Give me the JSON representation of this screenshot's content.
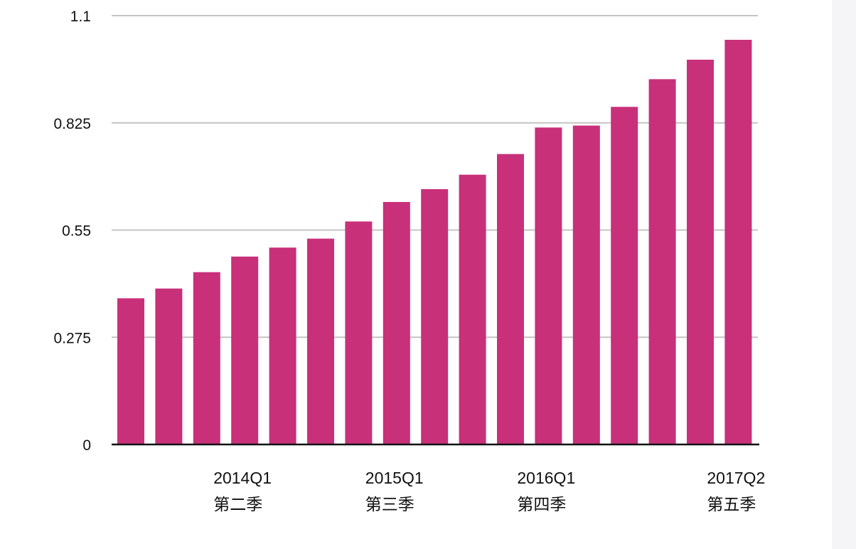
{
  "chart_data": {
    "type": "bar",
    "title": "",
    "xlabel": "",
    "ylabel": "",
    "ylim": [
      0,
      1.1
    ],
    "yticks": [
      "0",
      "0.275",
      "0.55",
      "0.825",
      "1.1"
    ],
    "grid": true,
    "legend": "none",
    "bar_color": "#c8307a",
    "values": [
      0.375,
      0.4,
      0.442,
      0.482,
      0.505,
      0.528,
      0.572,
      0.622,
      0.655,
      0.692,
      0.745,
      0.813,
      0.818,
      0.866,
      0.937,
      0.987,
      1.038
    ],
    "category_labels": [
      {
        "index": 3,
        "lines": [
          "2014Q1",
          "第二季"
        ]
      },
      {
        "index": 7,
        "lines": [
          "2015Q1",
          "第三季"
        ]
      },
      {
        "index": 11,
        "lines": [
          "2016Q1",
          "第四季"
        ]
      },
      {
        "index": 16,
        "lines": [
          "2017Q2",
          "第五季"
        ]
      }
    ]
  }
}
